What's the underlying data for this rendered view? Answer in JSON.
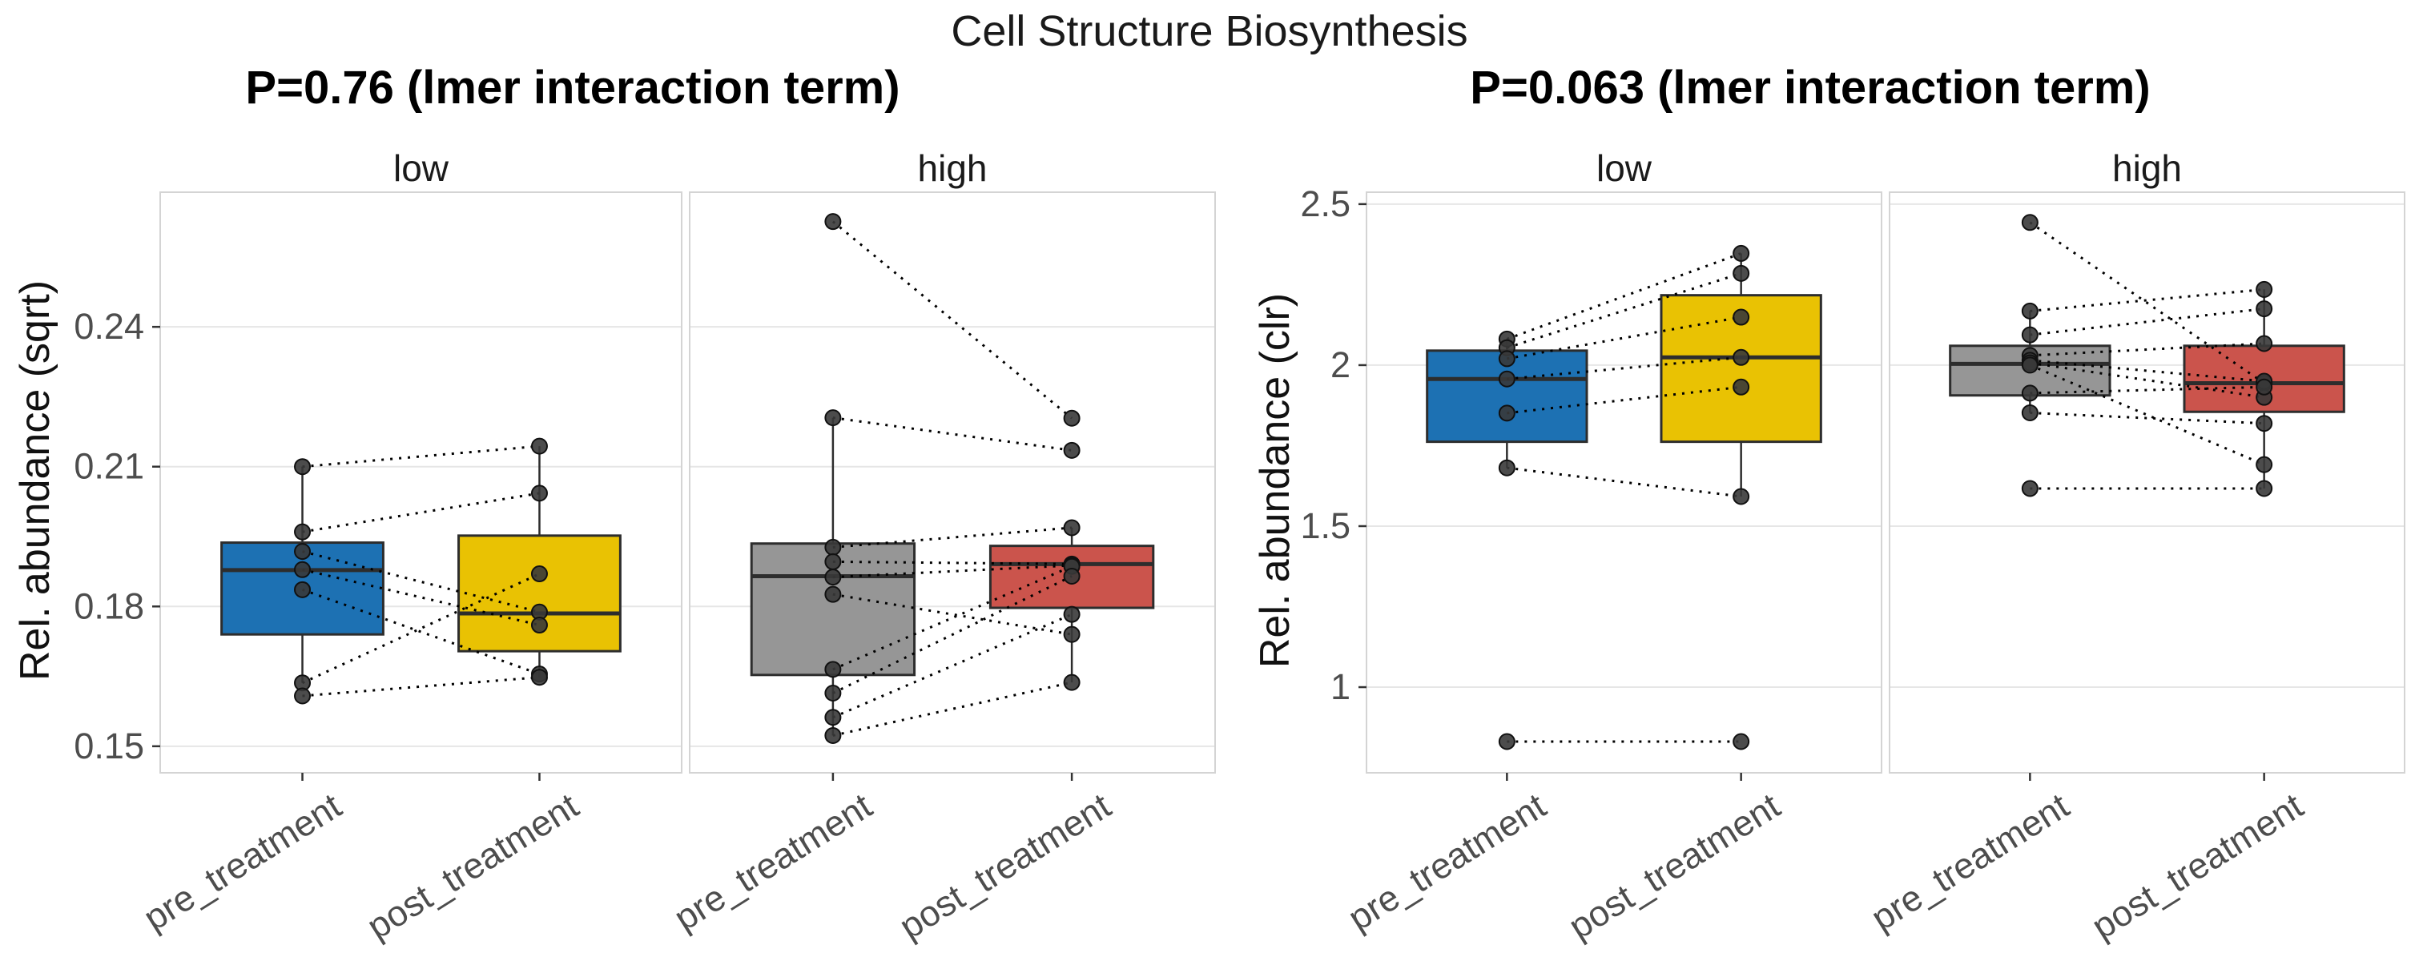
{
  "title": "Cell Structure Biosynthesis",
  "style": {
    "grid_color": "#E6E6E6",
    "panel_border_color": "#D4D4D4",
    "box_outline_color": "#2D2D2D",
    "point_color": "#383838",
    "pair_line_color": "#000000",
    "tick_text_color": "#4D4D4D",
    "facet_text_color": "#1A1A1A"
  },
  "chart_data": {
    "type": "boxplot-paired",
    "description": "Two faceted box plots with paired pre/post points connected by dotted lines",
    "x_categories": [
      "pre_treatment",
      "post_treatment"
    ],
    "charts": [
      {
        "subtitle": "P=0.76 (lmer interaction term)",
        "p_value": "0.76",
        "ylabel": "Rel. abundance (sqrt)",
        "ylim": [
          0.1443,
          0.2689
        ],
        "yticks": [
          {
            "value": 0.15,
            "label": "0.15"
          },
          {
            "value": 0.18,
            "label": "0.18"
          },
          {
            "value": 0.21,
            "label": "0.21"
          },
          {
            "value": 0.24,
            "label": "0.24"
          }
        ],
        "facets": [
          {
            "label": "low",
            "groups": [
              {
                "category": "pre_treatment",
                "color": "#1D71B3",
                "box": {
                  "lower": 0.1636,
                  "q1": 0.174,
                  "median": 0.1878,
                  "q3": 0.1937,
                  "upper": 0.21
                }
              },
              {
                "category": "post_treatment",
                "color": "#E9C203",
                "box": {
                  "lower": 0.1648,
                  "q1": 0.1704,
                  "median": 0.1785,
                  "q3": 0.1952,
                  "upper": 0.2144
                }
              }
            ],
            "pairs": [
              [
                0.21,
                0.2144
              ],
              [
                0.196,
                0.2043
              ],
              [
                0.1918,
                0.1788
              ],
              [
                0.1879,
                0.176
              ],
              [
                0.1836,
                0.1655
              ],
              [
                0.1636,
                0.187
              ],
              [
                0.1608,
                0.1648
              ]
            ]
          },
          {
            "label": "high",
            "groups": [
              {
                "category": "pre_treatment",
                "color": "#969696",
                "box": {
                  "lower": 0.1523,
                  "q1": 0.1653,
                  "median": 0.1865,
                  "q3": 0.1935,
                  "upper": 0.2205
                }
              },
              {
                "category": "post_treatment",
                "color": "#CB544C",
                "box": {
                  "lower": 0.1637,
                  "q1": 0.1797,
                  "median": 0.1891,
                  "q3": 0.193,
                  "upper": 0.1969
                }
              }
            ],
            "pairs": [
              [
                0.2626,
                0.2204
              ],
              [
                0.2205,
                0.2135
              ],
              [
                0.1927,
                0.1969
              ],
              [
                0.1896,
                0.1891
              ],
              [
                0.1863,
                0.1888
              ],
              [
                0.1826,
                0.174
              ],
              [
                0.1665,
                0.1886
              ],
              [
                0.1614,
                0.1865
              ],
              [
                0.1562,
                0.1783
              ],
              [
                0.1523,
                0.1637
              ]
            ]
          }
        ]
      },
      {
        "subtitle": "P=0.063 (lmer interaction term)",
        "p_value": "0.063",
        "ylabel": "Rel. abundance (clr)",
        "ylim": [
          0.734,
          2.537
        ],
        "yticks": [
          {
            "value": 1.0,
            "label": "1"
          },
          {
            "value": 1.5,
            "label": "1.5"
          },
          {
            "value": 2.0,
            "label": "2"
          },
          {
            "value": 2.5,
            "label": "2.5"
          }
        ],
        "facets": [
          {
            "label": "low",
            "groups": [
              {
                "category": "pre_treatment",
                "color": "#1D71B3",
                "box": {
                  "lower": 1.681,
                  "q1": 1.762,
                  "median": 1.957,
                  "q3": 2.045,
                  "upper": 2.081
                }
              },
              {
                "category": "post_treatment",
                "color": "#E9C203",
                "box": {
                  "lower": 1.592,
                  "q1": 1.762,
                  "median": 2.024,
                  "q3": 2.217,
                  "upper": 2.347
                }
              }
            ],
            "pairs": [
              [
                2.081,
                2.347
              ],
              [
                2.054,
                2.285
              ],
              [
                2.02,
                2.149
              ],
              [
                1.957,
                2.024
              ],
              [
                1.851,
                1.932
              ],
              [
                1.681,
                1.592
              ],
              [
                0.831,
                0.831
              ]
            ]
          },
          {
            "label": "high",
            "groups": [
              {
                "category": "pre_treatment",
                "color": "#969696",
                "box": {
                  "lower": 1.852,
                  "q1": 1.906,
                  "median": 2.004,
                  "q3": 2.06,
                  "upper": 2.168
                }
              },
              {
                "category": "post_treatment",
                "color": "#CB544C",
                "box": {
                  "lower": 1.617,
                  "q1": 1.855,
                  "median": 1.944,
                  "q3": 2.06,
                  "upper": 2.235
                }
              }
            ],
            "pairs": [
              [
                2.443,
                1.944
              ],
              [
                2.168,
                2.235
              ],
              [
                2.094,
                2.175
              ],
              [
                2.03,
                2.067
              ],
              [
                2.015,
                1.95
              ],
              [
                2.007,
                1.9
              ],
              [
                2.0,
                1.691
              ],
              [
                1.913,
                1.932
              ],
              [
                1.852,
                1.819
              ],
              [
                1.617,
                1.617
              ]
            ]
          }
        ]
      }
    ]
  }
}
